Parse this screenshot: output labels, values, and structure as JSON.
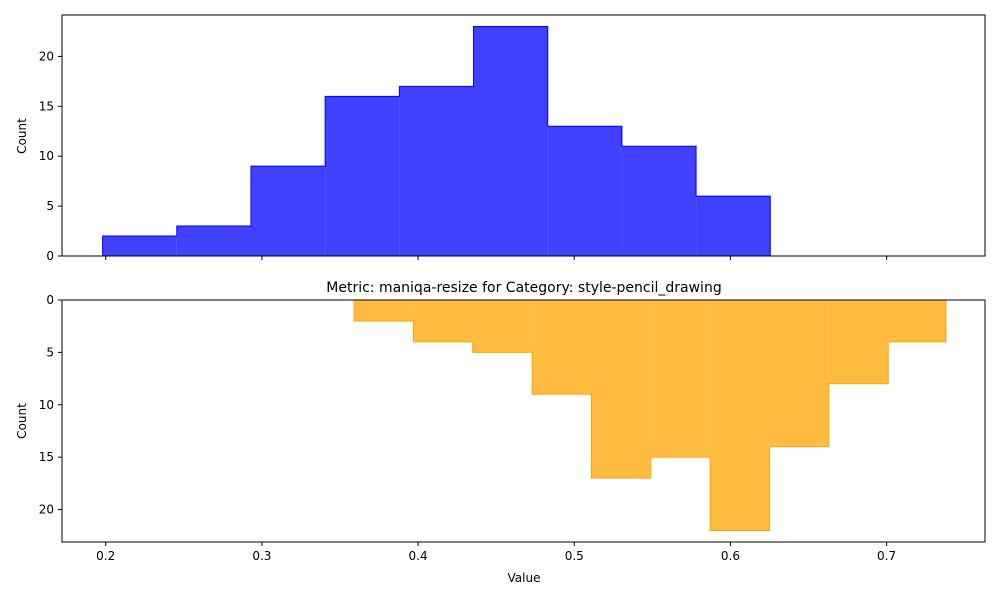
{
  "chart_data": [
    {
      "type": "histogram",
      "title": "",
      "xlabel": "",
      "ylabel": "Count",
      "xlim": [
        0.172,
        0.763
      ],
      "ylim": [
        0,
        24.15
      ],
      "y_inverted": false,
      "x_ticks": [
        "0.2",
        "0.3",
        "0.4",
        "0.5",
        "0.6",
        "0.7"
      ],
      "x_tick_labels_visible": false,
      "y_ticks": [
        "0",
        "5",
        "10",
        "15",
        "20"
      ],
      "grid": false,
      "color": "#0000ff",
      "bin_edges": [
        0.198,
        0.2455,
        0.293,
        0.3405,
        0.388,
        0.4355,
        0.483,
        0.5305,
        0.578,
        0.6255
      ],
      "counts": [
        2,
        3,
        9,
        16,
        17,
        23,
        13,
        11,
        6
      ]
    },
    {
      "type": "histogram",
      "title": "Metric: maniqa-resize for Category: style-pencil_drawing",
      "xlabel": "Value",
      "ylabel": "Count",
      "xlim": [
        0.172,
        0.763
      ],
      "ylim": [
        23.1,
        0
      ],
      "y_inverted": true,
      "x_ticks": [
        "0.2",
        "0.3",
        "0.4",
        "0.5",
        "0.6",
        "0.7"
      ],
      "x_tick_labels_visible": true,
      "y_ticks": [
        "0",
        "5",
        "10",
        "15",
        "20"
      ],
      "grid": false,
      "color": "#ffa500",
      "bin_edges": [
        0.359,
        0.397,
        0.435,
        0.473,
        0.511,
        0.549,
        0.587,
        0.625,
        0.663,
        0.701,
        0.738
      ],
      "counts": [
        2,
        4,
        5,
        9,
        17,
        15,
        22,
        14,
        8,
        4
      ]
    }
  ]
}
